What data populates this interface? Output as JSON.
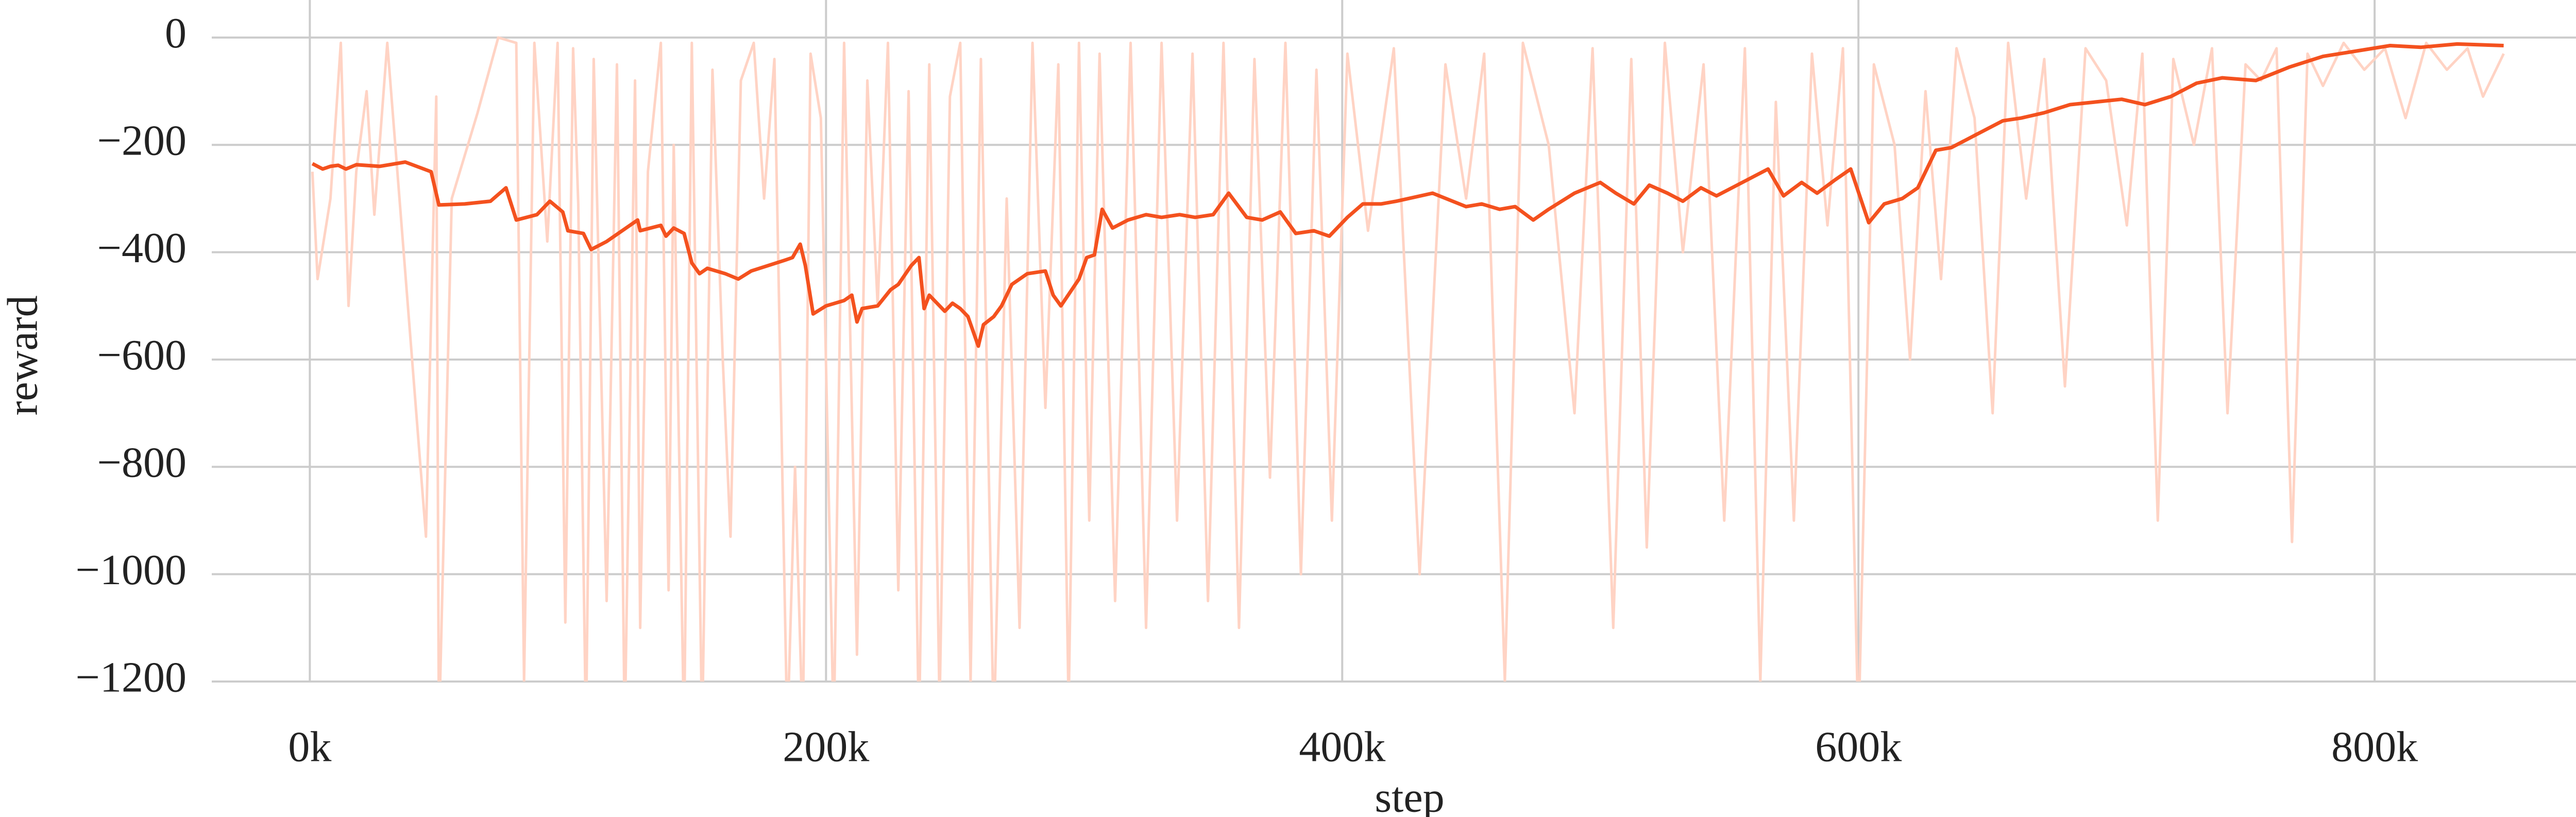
{
  "chart_data": {
    "type": "line",
    "xlabel": "step",
    "ylabel": "reward",
    "xlim": [
      -38,
      890
    ],
    "ylim": [
      -1200,
      70
    ],
    "xticks": [
      {
        "value": 0,
        "label": "0k"
      },
      {
        "value": 200,
        "label": "200k"
      },
      {
        "value": 400,
        "label": "400k"
      },
      {
        "value": 600,
        "label": "600k"
      },
      {
        "value": 800,
        "label": "800k"
      }
    ],
    "yticks": [
      0,
      {
        "value": -200,
        "label": "−200"
      },
      {
        "value": -400,
        "label": "−400"
      },
      {
        "value": -600,
        "label": "−600"
      },
      {
        "value": -800,
        "label": "−800"
      },
      {
        "value": -1000,
        "label": "−1000"
      },
      {
        "value": -1200,
        "label": "−1200"
      }
    ],
    "grid": true,
    "series": [
      {
        "color": "#ffd3c4",
        "x": [
          1,
          3,
          8,
          12,
          15,
          18,
          22,
          25,
          30,
          38,
          45,
          49,
          50,
          55,
          65,
          73,
          80,
          83,
          87,
          92,
          96,
          99,
          102,
          104,
          107,
          110,
          115,
          119,
          122,
          126,
          128,
          131,
          136,
          139,
          141,
          145,
          148,
          152,
          156,
          160,
          163,
          167,
          172,
          176,
          180,
          185,
          188,
          191,
          194,
          198,
          203,
          207,
          212,
          216,
          220,
          224,
          228,
          232,
          236,
          240,
          244,
          248,
          252,
          256,
          260,
          265,
          270,
          275,
          280,
          285,
          290,
          294,
          298,
          302,
          306,
          312,
          318,
          324,
          330,
          336,
          342,
          348,
          354,
          360,
          366,
          372,
          378,
          384,
          390,
          396,
          402,
          410,
          420,
          430,
          440,
          448,
          455,
          463,
          470,
          480,
          490,
          497,
          505,
          512,
          518,
          525,
          532,
          540,
          548,
          556,
          562,
          568,
          575,
          582,
          588,
          594,
          600,
          606,
          614,
          620,
          626,
          632,
          638,
          645,
          652,
          658,
          665,
          672,
          680,
          688,
          696,
          704,
          710,
          716,
          722,
          730,
          737,
          743,
          750,
          756,
          762,
          768,
          774,
          780,
          788,
          796,
          804,
          812,
          820,
          828,
          836,
          842,
          850
        ],
        "values": [
          -250,
          -450,
          -300,
          -10,
          -500,
          -250,
          -100,
          -330,
          -10,
          -500,
          -930,
          -110,
          -1300,
          -300,
          -140,
          0,
          -10,
          -1200,
          -10,
          -380,
          -10,
          -1090,
          -20,
          -310,
          -1300,
          -40,
          -1050,
          -50,
          -1300,
          -80,
          -1100,
          -250,
          -10,
          -1030,
          -200,
          -1300,
          -10,
          -1300,
          -60,
          -600,
          -930,
          -80,
          -10,
          -300,
          -40,
          -1300,
          -800,
          -1300,
          -30,
          -150,
          -1300,
          -10,
          -1150,
          -80,
          -500,
          -10,
          -1030,
          -100,
          -1300,
          -50,
          -1250,
          -110,
          -10,
          -1200,
          -40,
          -1300,
          -300,
          -1100,
          -10,
          -690,
          -50,
          -1250,
          -10,
          -900,
          -30,
          -1050,
          -10,
          -1100,
          -10,
          -900,
          -30,
          -1050,
          -10,
          -1100,
          -40,
          -820,
          -10,
          -1000,
          -60,
          -900,
          -30,
          -360,
          -20,
          -1000,
          -50,
          -300,
          -30,
          -1200,
          -10,
          -200,
          -700,
          -20,
          -1100,
          -40,
          -950,
          -10,
          -400,
          -50,
          -900,
          -20,
          -1200,
          -120,
          -900,
          -30,
          -350,
          -20,
          -1300,
          -50,
          -200,
          -600,
          -100,
          -450,
          -20,
          -150,
          -700,
          -10,
          -300,
          -40,
          -650,
          -20,
          -80,
          -350,
          -30,
          -900,
          -40,
          -200,
          -20,
          -700,
          -50,
          -80,
          -20,
          -940,
          -30,
          -90,
          -10,
          -60,
          -20,
          -150,
          -10,
          -60,
          -20,
          -110,
          -30
        ]
      },
      {
        "color": "#f4511e",
        "x": [
          1,
          5,
          8,
          11,
          14,
          18,
          27,
          37,
          47,
          50,
          60,
          70,
          76,
          80,
          88,
          93,
          98,
          100,
          106,
          109,
          115,
          127,
          128,
          136,
          138,
          141,
          145,
          148,
          151,
          154,
          161,
          166,
          171,
          184,
          187,
          190,
          192,
          195,
          200,
          207,
          210,
          212,
          214,
          220,
          225,
          228,
          233,
          236,
          238,
          240,
          246,
          249,
          252,
          255,
          259,
          261,
          265,
          268,
          272,
          278,
          285,
          288,
          291,
          298,
          301,
          304,
          307,
          311,
          317,
          324,
          330,
          337,
          343,
          350,
          356,
          363,
          369,
          376,
          382,
          389,
          395,
          402,
          408,
          415,
          421,
          435,
          448,
          454,
          461,
          467,
          474,
          480,
          490,
          500,
          506,
          513,
          519,
          526,
          532,
          539,
          545,
          555,
          565,
          571,
          578,
          584,
          591,
          597,
          604,
          610,
          617,
          623,
          630,
          636,
          646,
          656,
          663,
          672,
          682,
          692,
          702,
          711,
          721,
          731,
          741,
          754,
          767,
          780,
          793,
          806,
          818,
          832,
          850
        ],
        "values": [
          -235,
          -245,
          -240,
          -238,
          -245,
          -237,
          -240,
          -232,
          -250,
          -312,
          -310,
          -305,
          -280,
          -340,
          -330,
          -305,
          -325,
          -360,
          -365,
          -395,
          -380,
          -340,
          -360,
          -350,
          -370,
          -355,
          -365,
          -420,
          -440,
          -430,
          -440,
          -450,
          -435,
          -415,
          -410,
          -385,
          -425,
          -515,
          -500,
          -490,
          -480,
          -530,
          -505,
          -500,
          -470,
          -460,
          -425,
          -410,
          -505,
          -480,
          -510,
          -495,
          -505,
          -520,
          -575,
          -535,
          -520,
          -500,
          -460,
          -440,
          -435,
          -480,
          -500,
          -450,
          -410,
          -405,
          -320,
          -355,
          -340,
          -330,
          -335,
          -330,
          -335,
          -330,
          -290,
          -335,
          -340,
          -325,
          -365,
          -360,
          -370,
          -335,
          -310,
          -310,
          -305,
          -290,
          -315,
          -310,
          -320,
          -315,
          -340,
          -320,
          -290,
          -270,
          -290,
          -310,
          -275,
          -290,
          -305,
          -280,
          -295,
          -270,
          -245,
          -295,
          -270,
          -290,
          -265,
          -245,
          -345,
          -310,
          -300,
          -280,
          -210,
          -205,
          -180,
          -155,
          -150,
          -140,
          -125,
          -120,
          -115,
          -125,
          -110,
          -85,
          -75,
          -80,
          -55,
          -35,
          -25,
          -15,
          -18,
          -12,
          -15
        ]
      }
    ]
  }
}
